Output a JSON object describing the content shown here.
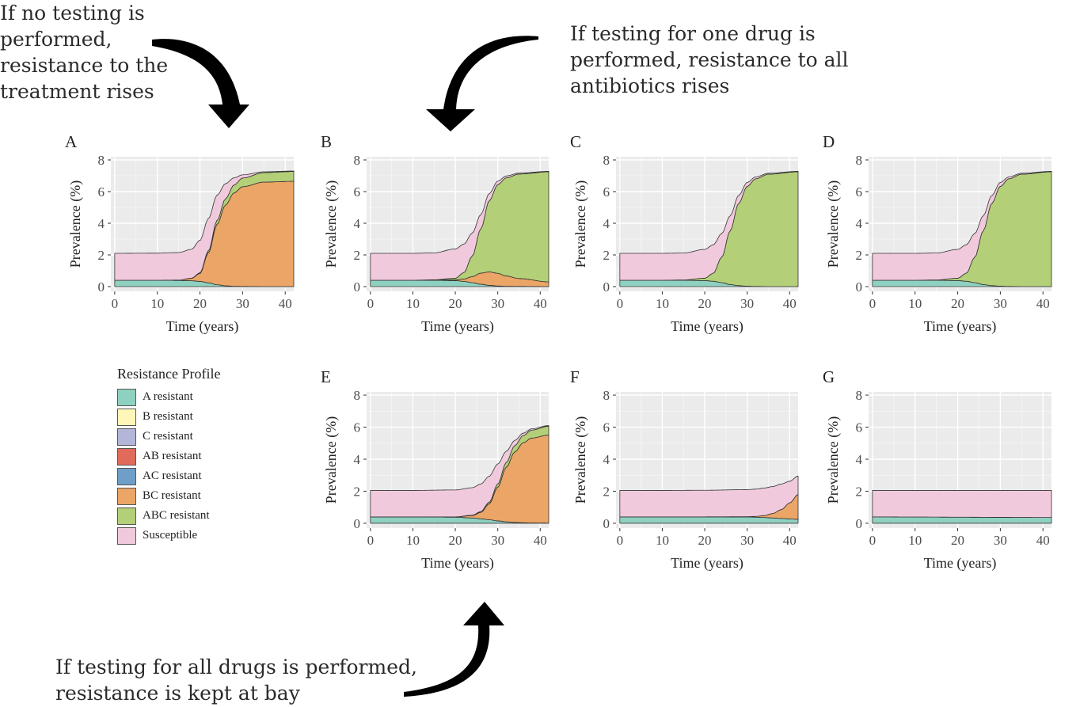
{
  "annotations": {
    "top_left": [
      "If no testing is",
      "performed,",
      "resistance to the",
      "treatment rises"
    ],
    "top_right": [
      "If testing for one drug is",
      "performed, resistance to all",
      "antibiotics rises"
    ],
    "bottom": [
      "If testing for all drugs is performed,",
      "resistance is kept at bay"
    ]
  },
  "legend": {
    "title": "Resistance Profile",
    "items": [
      {
        "label": "A resistant",
        "color": "#8fd1c0"
      },
      {
        "label": "B resistant",
        "color": "#fff6b8"
      },
      {
        "label": "C resistant",
        "color": "#b3b6d9"
      },
      {
        "label": "AB resistant",
        "color": "#e06b5a"
      },
      {
        "label": "AC resistant",
        "color": "#6f9fc9"
      },
      {
        "label": "BC resistant",
        "color": "#eba566"
      },
      {
        "label": "ABC resistant",
        "color": "#b3cf78"
      },
      {
        "label": "Susceptible",
        "color": "#f0cadc"
      }
    ]
  },
  "chart_data": [
    {
      "panel": "A",
      "type": "area",
      "xlabel": "Time (years)",
      "ylabel": "Prevalence (%)",
      "xlim": [
        0,
        42
      ],
      "ylim": [
        0,
        8
      ],
      "x_ticks": [
        0,
        10,
        20,
        30,
        40
      ],
      "y_ticks": [
        0,
        2,
        4,
        6,
        8
      ],
      "grid": true,
      "stacking": "stacked",
      "series": [
        {
          "name": "A resistant",
          "x": [
            0,
            10,
            15,
            18,
            20,
            22,
            24,
            26,
            28,
            30,
            35,
            42
          ],
          "values": [
            0.4,
            0.4,
            0.39,
            0.37,
            0.33,
            0.24,
            0.12,
            0.05,
            0.02,
            0.01,
            0,
            0
          ]
        },
        {
          "name": "BC resistant",
          "x": [
            0,
            10,
            15,
            18,
            20,
            22,
            24,
            26,
            28,
            30,
            35,
            42
          ],
          "values": [
            0,
            0,
            0.02,
            0.15,
            0.5,
            1.9,
            3.8,
            5.1,
            5.9,
            6.3,
            6.6,
            6.65
          ]
        },
        {
          "name": "ABC resistant",
          "x": [
            0,
            10,
            15,
            18,
            20,
            22,
            24,
            26,
            28,
            30,
            35,
            42
          ],
          "values": [
            0,
            0,
            0,
            0.01,
            0.04,
            0.12,
            0.25,
            0.4,
            0.5,
            0.55,
            0.6,
            0.62
          ]
        },
        {
          "name": "Susceptible",
          "x": [
            0,
            10,
            15,
            18,
            20,
            22,
            24,
            26,
            28,
            30,
            35,
            42
          ],
          "values": [
            1.7,
            1.71,
            1.74,
            1.82,
            2.05,
            2.04,
            1.6,
            0.95,
            0.45,
            0.2,
            0.05,
            0.03
          ]
        }
      ]
    },
    {
      "panel": "B",
      "type": "area",
      "xlabel": "Time (years)",
      "ylabel": "Prevalence (%)",
      "xlim": [
        0,
        42
      ],
      "ylim": [
        0,
        8
      ],
      "x_ticks": [
        0,
        10,
        20,
        30,
        40
      ],
      "y_ticks": [
        0,
        2,
        4,
        6,
        8
      ],
      "grid": true,
      "stacking": "stacked",
      "series": [
        {
          "name": "A resistant",
          "x": [
            0,
            10,
            15,
            20,
            22,
            24,
            26,
            28,
            30,
            32,
            35,
            42
          ],
          "values": [
            0.4,
            0.4,
            0.4,
            0.38,
            0.33,
            0.25,
            0.15,
            0.08,
            0.04,
            0.02,
            0.01,
            0
          ]
        },
        {
          "name": "BC resistant",
          "x": [
            0,
            10,
            15,
            20,
            22,
            24,
            26,
            28,
            30,
            32,
            35,
            42
          ],
          "values": [
            0,
            0,
            0.01,
            0.05,
            0.15,
            0.38,
            0.7,
            0.85,
            0.8,
            0.65,
            0.5,
            0.3
          ]
        },
        {
          "name": "ABC resistant",
          "x": [
            0,
            10,
            15,
            20,
            22,
            24,
            26,
            28,
            30,
            32,
            35,
            42
          ],
          "values": [
            0,
            0,
            0.02,
            0.1,
            0.4,
            1.3,
            2.8,
            4.5,
            5.6,
            6.2,
            6.6,
            6.95
          ]
        },
        {
          "name": "Susceptible",
          "x": [
            0,
            10,
            15,
            20,
            22,
            24,
            26,
            28,
            30,
            32,
            35,
            42
          ],
          "values": [
            1.7,
            1.7,
            1.7,
            1.85,
            1.8,
            1.45,
            0.9,
            0.45,
            0.22,
            0.12,
            0.06,
            0.03
          ]
        }
      ]
    },
    {
      "panel": "C",
      "type": "area",
      "xlabel": "Time (years)",
      "ylabel": "Prevalence (%)",
      "xlim": [
        0,
        42
      ],
      "ylim": [
        0,
        8
      ],
      "x_ticks": [
        0,
        10,
        20,
        30,
        40
      ],
      "y_ticks": [
        0,
        2,
        4,
        6,
        8
      ],
      "grid": true,
      "stacking": "stacked",
      "series": [
        {
          "name": "A resistant",
          "x": [
            0,
            10,
            15,
            20,
            22,
            24,
            26,
            28,
            30,
            32,
            35,
            42
          ],
          "values": [
            0.4,
            0.4,
            0.4,
            0.38,
            0.34,
            0.25,
            0.13,
            0.06,
            0.03,
            0.01,
            0,
            0
          ]
        },
        {
          "name": "ABC resistant",
          "x": [
            0,
            10,
            15,
            20,
            22,
            24,
            26,
            28,
            30,
            32,
            35,
            42
          ],
          "values": [
            0,
            0,
            0.02,
            0.15,
            0.5,
            1.6,
            3.4,
            5.2,
            6.3,
            6.8,
            7.1,
            7.25
          ]
        },
        {
          "name": "Susceptible",
          "x": [
            0,
            10,
            15,
            20,
            22,
            24,
            26,
            28,
            30,
            32,
            35,
            42
          ],
          "values": [
            1.7,
            1.7,
            1.7,
            1.82,
            1.8,
            1.5,
            0.95,
            0.5,
            0.25,
            0.12,
            0.06,
            0.03
          ]
        }
      ]
    },
    {
      "panel": "D",
      "type": "area",
      "xlabel": "Time (years)",
      "ylabel": "Prevalence (%)",
      "xlim": [
        0,
        42
      ],
      "ylim": [
        0,
        8
      ],
      "x_ticks": [
        0,
        10,
        20,
        30,
        40
      ],
      "y_ticks": [
        0,
        2,
        4,
        6,
        8
      ],
      "grid": true,
      "stacking": "stacked",
      "series": [
        {
          "name": "A resistant",
          "x": [
            0,
            10,
            15,
            20,
            22,
            24,
            26,
            28,
            30,
            32,
            35,
            42
          ],
          "values": [
            0.4,
            0.4,
            0.4,
            0.38,
            0.34,
            0.25,
            0.13,
            0.06,
            0.03,
            0.01,
            0,
            0
          ]
        },
        {
          "name": "ABC resistant",
          "x": [
            0,
            10,
            15,
            20,
            22,
            24,
            26,
            28,
            30,
            32,
            35,
            42
          ],
          "values": [
            0,
            0,
            0.02,
            0.15,
            0.5,
            1.6,
            3.4,
            5.2,
            6.3,
            6.8,
            7.1,
            7.25
          ]
        },
        {
          "name": "Susceptible",
          "x": [
            0,
            10,
            15,
            20,
            22,
            24,
            26,
            28,
            30,
            32,
            35,
            42
          ],
          "values": [
            1.7,
            1.7,
            1.7,
            1.82,
            1.8,
            1.5,
            0.95,
            0.5,
            0.25,
            0.12,
            0.06,
            0.03
          ]
        }
      ]
    },
    {
      "panel": "E",
      "type": "area",
      "xlabel": "Time (years)",
      "ylabel": "Prevalence (%)",
      "xlim": [
        0,
        42
      ],
      "ylim": [
        0,
        8
      ],
      "x_ticks": [
        0,
        10,
        20,
        30,
        40
      ],
      "y_ticks": [
        0,
        2,
        4,
        6,
        8
      ],
      "grid": true,
      "stacking": "stacked",
      "series": [
        {
          "name": "A resistant",
          "x": [
            0,
            10,
            20,
            24,
            26,
            28,
            30,
            32,
            34,
            36,
            38,
            42
          ],
          "values": [
            0.4,
            0.4,
            0.38,
            0.33,
            0.28,
            0.22,
            0.15,
            0.09,
            0.05,
            0.03,
            0.02,
            0.01
          ]
        },
        {
          "name": "BC resistant",
          "x": [
            0,
            10,
            20,
            24,
            26,
            28,
            30,
            32,
            34,
            36,
            38,
            42
          ],
          "values": [
            0,
            0,
            0.02,
            0.15,
            0.4,
            1.0,
            2.1,
            3.4,
            4.4,
            5.0,
            5.3,
            5.5
          ]
        },
        {
          "name": "ABC resistant",
          "x": [
            0,
            10,
            20,
            24,
            26,
            28,
            30,
            32,
            34,
            36,
            38,
            42
          ],
          "values": [
            0,
            0,
            0,
            0.02,
            0.05,
            0.1,
            0.2,
            0.3,
            0.4,
            0.45,
            0.5,
            0.55
          ]
        },
        {
          "name": "Susceptible",
          "x": [
            0,
            10,
            20,
            24,
            26,
            28,
            30,
            32,
            34,
            36,
            38,
            42
          ],
          "values": [
            1.65,
            1.65,
            1.68,
            1.72,
            1.72,
            1.62,
            1.25,
            0.7,
            0.32,
            0.15,
            0.08,
            0.04
          ]
        }
      ]
    },
    {
      "panel": "F",
      "type": "area",
      "xlabel": "Time (years)",
      "ylabel": "Prevalence (%)",
      "xlim": [
        0,
        42
      ],
      "ylim": [
        0,
        8
      ],
      "x_ticks": [
        0,
        10,
        20,
        30,
        40
      ],
      "y_ticks": [
        0,
        2,
        4,
        6,
        8
      ],
      "grid": true,
      "stacking": "stacked",
      "series": [
        {
          "name": "A resistant",
          "x": [
            0,
            10,
            20,
            30,
            32,
            34,
            36,
            38,
            40,
            42
          ],
          "values": [
            0.4,
            0.4,
            0.4,
            0.39,
            0.38,
            0.36,
            0.33,
            0.3,
            0.27,
            0.25
          ]
        },
        {
          "name": "BC resistant",
          "x": [
            0,
            10,
            20,
            30,
            32,
            34,
            36,
            38,
            40,
            42
          ],
          "values": [
            0,
            0,
            0,
            0.02,
            0.05,
            0.12,
            0.28,
            0.55,
            1.0,
            1.55
          ]
        },
        {
          "name": "Susceptible",
          "x": [
            0,
            10,
            20,
            30,
            32,
            34,
            36,
            38,
            40,
            42
          ],
          "values": [
            1.65,
            1.65,
            1.66,
            1.69,
            1.7,
            1.72,
            1.68,
            1.6,
            1.35,
            1.15
          ]
        }
      ]
    },
    {
      "panel": "G",
      "type": "area",
      "xlabel": "Time (years)",
      "ylabel": "Prevalence (%)",
      "xlim": [
        0,
        42
      ],
      "ylim": [
        0,
        8
      ],
      "x_ticks": [
        0,
        10,
        20,
        30,
        40
      ],
      "y_ticks": [
        0,
        2,
        4,
        6,
        8
      ],
      "grid": true,
      "stacking": "stacked",
      "series": [
        {
          "name": "A resistant",
          "x": [
            0,
            10,
            20,
            30,
            42
          ],
          "values": [
            0.4,
            0.39,
            0.38,
            0.37,
            0.36
          ]
        },
        {
          "name": "Susceptible",
          "x": [
            0,
            10,
            20,
            30,
            42
          ],
          "values": [
            1.65,
            1.66,
            1.67,
            1.68,
            1.69
          ]
        }
      ]
    }
  ]
}
